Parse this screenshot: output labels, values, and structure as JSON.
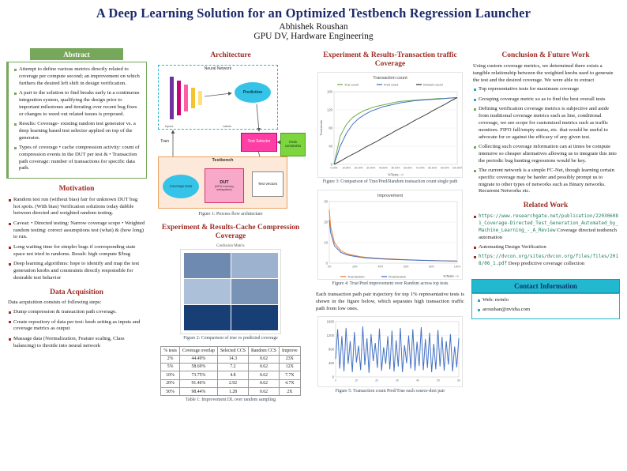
{
  "colors": {
    "title_navy": "#1b2a6b",
    "section_maroon": "#9e2b25",
    "abstract_green": "#76a75a",
    "contact_cyan": "#22b8cf",
    "heatmap_dark": "#08306b"
  },
  "header": {
    "title": "A Deep Learning Solution for an Optimized Testbench Regression Launcher",
    "author": "Abhishek Roushan",
    "affiliation": "GPU DV, Hardware Engineering"
  },
  "abstract": {
    "heading": "Abstract",
    "items": [
      "Attempt to define various metrics directly related to coverage per compute second; an improvement on which furthers the desired left shift in design verification.",
      "A part to the solution to find breaks early in a continuous integration system, qualifying the design prior to important milestones and iterating over recent bug fixes or changes to weed out related issues is proposed.",
      "Results: Coverage- existing random test generator vs. a deep learning based test selector applied on top of the generator.",
      "Types of coverage • cache compression activity: count of compression events in the DUT per test & • Transaction path coverage: number of transactions for specific data path."
    ]
  },
  "motivation": {
    "heading": "Motivation",
    "items": [
      "Random test run (without bias) fair for unknown DUT bug hot spots. (With bias) Verification solutions today dabble between directed and weighted random testing.",
      "Caveat: • Directed testing: Narrow coverage scope • Weighted random testing: correct assumptions test (what) & (how long) to run.",
      "Long waiting time for simpler bugs if corresponding state space not tried in randoms. Result: high compute $/bug",
      "Deep learning algorithms: hope to identify and map the test generation knobs and constraints directly responsible for desirable test behavior"
    ]
  },
  "data_acquisition": {
    "heading": "Data Acquisition",
    "intro": "Data acquisition consists of following steps:",
    "items": [
      "Dump compression & transaction path coverage.",
      "Create repository of data per test: knob setting as inputs and coverage metrics as output",
      "Massage data (Normalization, Feature scaling, Class balancing) to throttle into neural network"
    ]
  },
  "architecture": {
    "heading": "Architecture",
    "figure_caption": "Figure 1: Process flow architecture",
    "labels": {
      "neural_network": "Neural Network",
      "inputs": "Inputs",
      "labels": "Labels",
      "prediction": "Prediction",
      "train": "Train",
      "test_selector": "Test Selector",
      "knob_constraints": "Knob constraints",
      "testbench": "Testbench",
      "coverage_data": "Coverage Data",
      "dut": "DUT",
      "dut_sub": "(GPU memory subsystem)",
      "test_vectors": "Test Vectors"
    }
  },
  "cache_section": {
    "heading": "Experiment & Results-Cache Compression Coverage",
    "matrix_title": "Confusion Matrix",
    "matrix_rows": [
      [
        0.5,
        0.28
      ],
      [
        0.2,
        0.45
      ],
      [
        0.92,
        0.92
      ]
    ],
    "figure_caption": "Figure 2: Comparison of true vs predicted coverage",
    "table_caption": "Table 1: Improvement DL over random sampling",
    "table": {
      "headers": [
        "% tests",
        "Coverage overlap",
        "Selected CCS",
        "Random CCS",
        "Improve"
      ],
      "rows": [
        [
          "2%",
          "44.49%",
          "14.3",
          "0.62",
          "23X"
        ],
        [
          "5%",
          "58.69%",
          "7.2",
          "0.62",
          "12X"
        ],
        [
          "10%",
          "73.75%",
          "4.8",
          "0.62",
          "7.7X"
        ],
        [
          "20%",
          "91.46%",
          "2.92",
          "0.62",
          "4.7X"
        ],
        [
          "50%",
          "98.44%",
          "1.28",
          "0.62",
          "2X"
        ]
      ]
    }
  },
  "transaction_section": {
    "heading": "Experiment & Results-Transaction traffic Coverage",
    "figure3_caption": "Figure 3: Comparison of True/Pred/Random transaction count single path",
    "figure4_caption": "Figure 4: True/Pred improvement over Random across top tests",
    "paragraph": "Each transaction path pair trajectory for top 1% representative tests is shown in the figure below, which separates high transaction traffic path from low ones.",
    "figure5_caption": "Figure 5: Transaction count Pred/True each source-dest pair"
  },
  "conclusion": {
    "heading": "Conclusion & Future Work",
    "intro": "Using custom coverage metrics, we determined there exists a tangible relationship between the weighted knobs used to generate the test and the desired coverage. We were able to extract",
    "items_short": [
      "Top representative tests for maximum coverage",
      "Grouping coverage metric so as to find the best overall tests"
    ],
    "items_long": [
      "Defining verification coverage metrics is subjective and aside from traditional coverage metrics such as line, conditional coverage, we see scope for customized metrics such as traffic monitors. FIFO full/empty status, etc. that would be useful to advocate for or against the efficacy of any given test.",
      "Collecting such coverage information can at times be compute intensive so cheaper alternatives allowing us to integrate this into the periodic bug hunting regressions would be key.",
      "The current network is a simple FC-Net, though learning certain specific coverage may be harder and possibly prompt us to migrate to other types of networks such as Binary networks. Recurrent Networks etc."
    ]
  },
  "related_work": {
    "heading": "Related Work",
    "items": [
      {
        "url": "https://www.researchgate.net/publication/220306081_Coverage-Directed_Test_Generation_Automated_by_Machine_Learning_-_A_Review",
        "text": "Coverage directed testbench automation"
      },
      {
        "text": "Automating Design Verification"
      },
      {
        "url": "https://dvcon.org/sites/dvcon.org/files/files/2018/06_1.pdf",
        "text": "Deep predictive coverage collection"
      }
    ]
  },
  "contact": {
    "heading": "Contact Information",
    "items": [
      "Web: nvinfo",
      "aroushan@nvidia.com"
    ]
  },
  "chart_data": [
    {
      "id": "fig3",
      "type": "line",
      "title": "Transaction count",
      "xlabel": "%Tests -->",
      "ylabel": "Thousands",
      "x": [
        0,
        5,
        10,
        15,
        20,
        25,
        30,
        35,
        40,
        45,
        50,
        55,
        60,
        65,
        70,
        75,
        80,
        85,
        90,
        95,
        100
      ],
      "xticklabels": [
        "0.00%",
        "10.00%",
        "20.00%",
        "30.00%",
        "40.00%",
        "50.00%",
        "60.00%",
        "70.00%",
        "80.00%",
        "90.00%",
        "100.00%"
      ],
      "ylim": [
        0,
        160
      ],
      "series": [
        {
          "name": "True count",
          "color": "#70ad47",
          "values": [
            0,
            62,
            88,
            103,
            112,
            119,
            124,
            128,
            131,
            134,
            137,
            139,
            140,
            141,
            142,
            143,
            144,
            145,
            145,
            146,
            147
          ]
        },
        {
          "name": "Pred count",
          "color": "#4472c4",
          "values": [
            0,
            40,
            68,
            88,
            101,
            110,
            117,
            122,
            127,
            130,
            133,
            136,
            138,
            140,
            141,
            142,
            143,
            144,
            145,
            146,
            147
          ]
        },
        {
          "name": "Random count",
          "color": "#404040",
          "values": [
            0,
            7,
            15,
            22,
            29,
            37,
            44,
            51,
            59,
            66,
            74,
            81,
            88,
            96,
            103,
            110,
            118,
            125,
            132,
            140,
            147
          ]
        }
      ]
    },
    {
      "id": "fig4",
      "type": "line",
      "title": "Improvement",
      "xlabel": "%Tests -->",
      "x": [
        1,
        2,
        5,
        10,
        15,
        20,
        25,
        30,
        40,
        50,
        60,
        70,
        80,
        90,
        100
      ],
      "xticklabels": [
        "0%",
        "20%",
        "40%",
        "60%",
        "80%",
        "100%"
      ],
      "ylim": [
        0,
        30
      ],
      "series": [
        {
          "name": "True/random",
          "color": "#ed7d31",
          "values": [
            26,
            18,
            10,
            6,
            4.5,
            3.8,
            3.2,
            2.8,
            2.3,
            2.0,
            1.7,
            1.5,
            1.3,
            1.15,
            1.0
          ]
        },
        {
          "name": "Pred/random",
          "color": "#4472c4",
          "values": [
            21,
            15,
            8.5,
            5.2,
            4.0,
            3.4,
            2.9,
            2.5,
            2.1,
            1.8,
            1.6,
            1.4,
            1.25,
            1.1,
            1.0
          ]
        }
      ]
    },
    {
      "id": "fig5",
      "type": "line",
      "xticklabels": [
        "0",
        "10",
        "20",
        "30",
        "40",
        "50",
        "60"
      ],
      "ylim": [
        0,
        1600
      ],
      "series": [
        {
          "name": "Transaction count",
          "color": "#4472c4",
          "values": [
            520,
            1380,
            240,
            1180,
            160,
            1420,
            380,
            1040,
            140,
            1300,
            420,
            900,
            200,
            1460,
            340,
            1120,
            120,
            1240,
            460,
            980,
            260,
            1400,
            180,
            860,
            380,
            1180,
            220,
            1340,
            160,
            1060,
            300,
            1420,
            140,
            920,
            400,
            1200,
            240,
            1380,
            180,
            1020,
            320,
            1440,
            200,
            1100,
            260,
            1280,
            140,
            960,
            220,
            1360,
            300,
            1160,
            180,
            1040,
            360,
            1240,
            160,
            880,
            280,
            1120
          ]
        }
      ]
    }
  ]
}
